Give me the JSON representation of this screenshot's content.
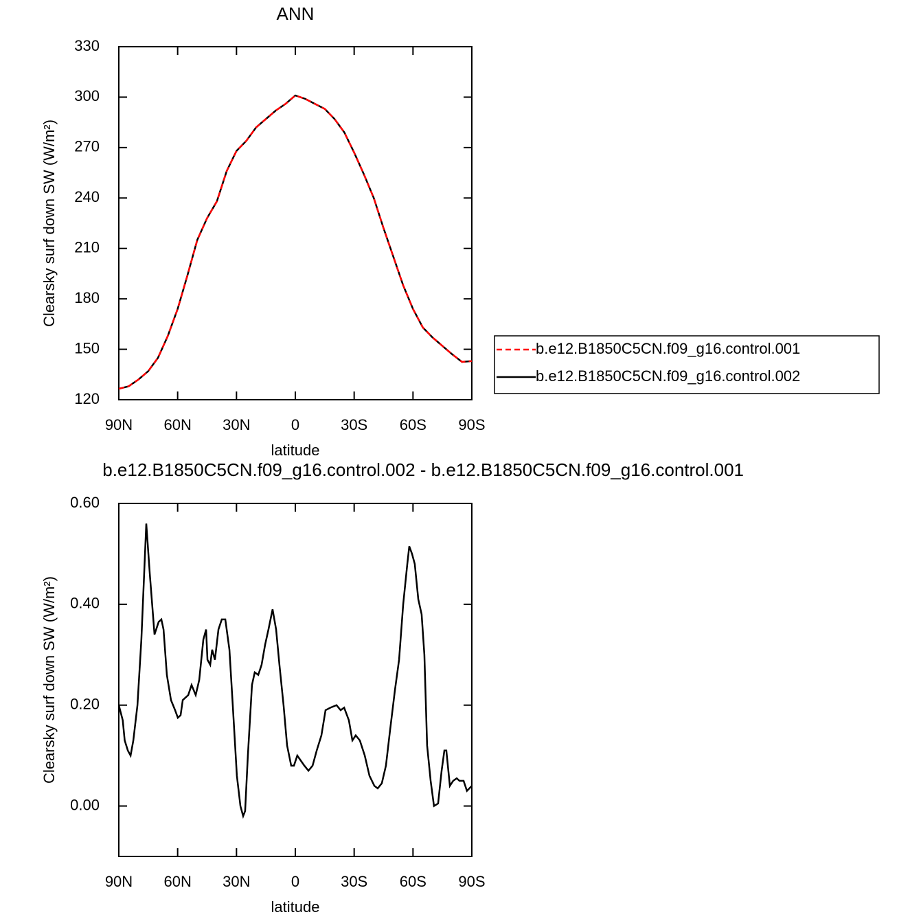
{
  "chart_data": [
    {
      "type": "line",
      "title": "ANN",
      "xlabel": "latitude",
      "ylabel": "Clearsky surf down SW (W/m²)",
      "x": [
        90,
        85,
        80,
        75,
        70,
        65,
        60,
        55,
        50,
        45,
        40,
        35,
        30,
        25,
        20,
        15,
        10,
        5,
        0,
        -5,
        -10,
        -15,
        -20,
        -25,
        -30,
        -35,
        -40,
        -45,
        -50,
        -55,
        -60,
        -65,
        -70,
        -75,
        -80,
        -85,
        -90
      ],
      "series": [
        {
          "name": "b.e12.B1850C5CN.f09_g16.control.001",
          "color": "#ff0000",
          "linestyle": "dashed",
          "values": [
            126.5,
            128,
            132,
            137,
            145,
            158,
            174,
            194,
            215,
            228,
            238,
            256,
            268,
            274,
            282,
            287,
            292,
            296,
            301,
            299,
            296,
            293,
            287,
            279,
            267,
            254,
            240,
            222,
            205,
            188,
            174,
            163,
            157,
            152,
            147,
            142.5,
            143
          ]
        },
        {
          "name": "b.e12.B1850C5CN.f09_g16.control.002",
          "color": "#000000",
          "linestyle": "solid",
          "values": [
            126.5,
            128,
            132,
            137,
            145,
            158,
            174,
            194,
            215,
            228,
            238,
            256,
            268,
            274,
            282,
            287,
            292,
            296,
            301,
            299,
            296,
            293,
            287,
            279,
            267,
            254,
            240,
            222,
            205,
            188,
            174,
            163,
            157,
            152,
            147,
            142.5,
            143
          ]
        }
      ],
      "xlim": [
        90,
        -90
      ],
      "xticks": [
        {
          "value": 90,
          "label": "90N"
        },
        {
          "value": 60,
          "label": "60N"
        },
        {
          "value": 30,
          "label": "30N"
        },
        0,
        {
          "value": -30,
          "label": "30S"
        },
        {
          "value": -60,
          "label": "60S"
        },
        {
          "value": -90,
          "label": "90S"
        }
      ],
      "ylim": [
        120,
        330
      ],
      "yticks": [
        120,
        150,
        180,
        210,
        240,
        270,
        300,
        330
      ],
      "grid": false,
      "legend": "right"
    },
    {
      "type": "line",
      "title": "b.e12.B1850C5CN.f09_g16.control.002 - b.e12.B1850C5CN.f09_g16.control.001",
      "xlabel": "latitude",
      "ylabel": "Clearsky surf down SW (W/m²)",
      "x": [
        90,
        88,
        87,
        85.4,
        84,
        82.6,
        80.5,
        78.5,
        76,
        74.2,
        71.8,
        69.7,
        68.3,
        67.2,
        65.5,
        63.4,
        61.3,
        59.9,
        58.5,
        57.4,
        54.6,
        52.9,
        50.8,
        49,
        46.9,
        45.5,
        44.8,
        43.4,
        42.4,
        41,
        39.2,
        37.5,
        35.7,
        33.6,
        31.9,
        29.8,
        28,
        26.6,
        25.6,
        24.2,
        22.1,
        20.7,
        18.9,
        17.2,
        15.4,
        13.7,
        11.6,
        9.8,
        8.1,
        6,
        4.2,
        2.1,
        0.7,
        -1,
        -2.8,
        -4.6,
        -6.7,
        -8.8,
        -10.9,
        -13.3,
        -15.4,
        -17.9,
        -21,
        -23.1,
        -24.9,
        -27.3,
        -29.1,
        -30.8,
        -32.9,
        -35.4,
        -37.8,
        -40.3,
        -42,
        -44.1,
        -46.2,
        -48.3,
        -50.8,
        -52.9,
        -55,
        -57.1,
        -58.1,
        -59.5,
        -60.9,
        -62.7,
        -64.4,
        -65.8,
        -67.2,
        -69,
        -70.7,
        -72.8,
        -74.6,
        -76,
        -77,
        -78.8,
        -80.5,
        -82.3,
        -83.7,
        -85.8,
        -87.5,
        -90
      ],
      "values": [
        0.2,
        0.17,
        0.13,
        0.11,
        0.1,
        0.13,
        0.2,
        0.33,
        0.56,
        0.46,
        0.34,
        0.365,
        0.37,
        0.35,
        0.26,
        0.21,
        0.19,
        0.175,
        0.18,
        0.21,
        0.22,
        0.24,
        0.22,
        0.25,
        0.33,
        0.35,
        0.29,
        0.28,
        0.31,
        0.29,
        0.35,
        0.37,
        0.37,
        0.31,
        0.2,
        0.06,
        0,
        -0.02,
        -0.01,
        0.1,
        0.24,
        0.265,
        0.26,
        0.28,
        0.32,
        0.35,
        0.39,
        0.35,
        0.28,
        0.2,
        0.12,
        0.08,
        0.08,
        0.1,
        0.09,
        0.08,
        0.07,
        0.08,
        0.11,
        0.14,
        0.19,
        0.195,
        0.2,
        0.19,
        0.195,
        0.17,
        0.13,
        0.14,
        0.13,
        0.1,
        0.06,
        0.04,
        0.035,
        0.045,
        0.08,
        0.15,
        0.23,
        0.29,
        0.4,
        0.48,
        0.515,
        0.5,
        0.48,
        0.41,
        0.38,
        0.3,
        0.12,
        0.05,
        0,
        0.005,
        0.07,
        0.11,
        0.11,
        0.04,
        0.05,
        0.055,
        0.05,
        0.05,
        0.03,
        0.04
      ],
      "color": "#000000",
      "xlim": [
        90,
        -90
      ],
      "xticks": [
        {
          "value": 90,
          "label": "90N"
        },
        {
          "value": 60,
          "label": "60N"
        },
        {
          "value": 30,
          "label": "30N"
        },
        0,
        {
          "value": -30,
          "label": "30S"
        },
        {
          "value": -60,
          "label": "60S"
        },
        {
          "value": -90,
          "label": "90S"
        }
      ],
      "ylim": [
        -0.1,
        0.6
      ],
      "yticks": [
        {
          "value": 0,
          "label": "0.00"
        },
        {
          "value": 0.2,
          "label": "0.20"
        },
        {
          "value": 0.4,
          "label": "0.40"
        },
        {
          "value": 0.6,
          "label": "0.60"
        }
      ],
      "grid": false
    }
  ]
}
